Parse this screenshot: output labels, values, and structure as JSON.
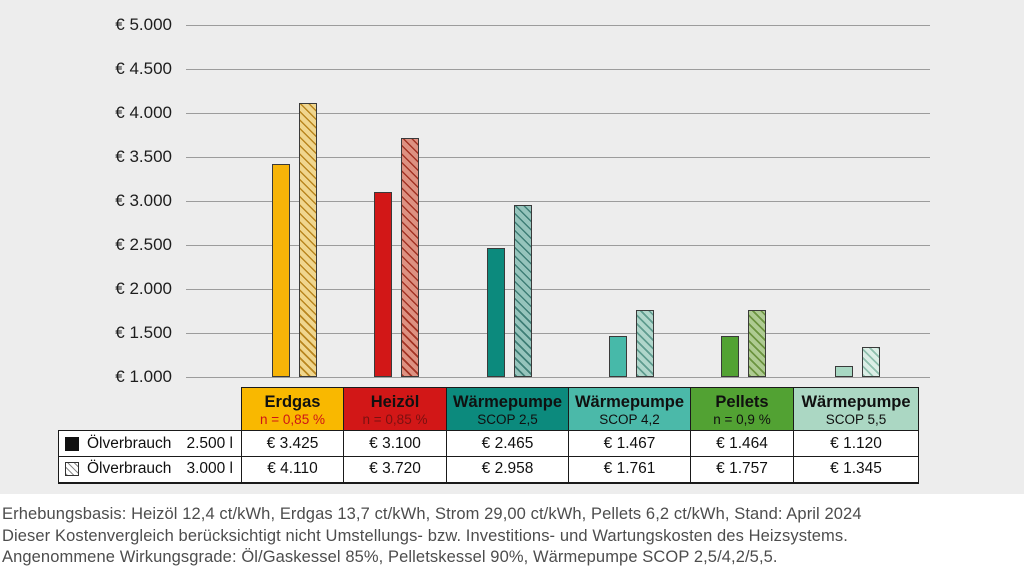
{
  "chart_data": {
    "type": "bar",
    "categories": [
      "Erdgas",
      "Heizöl",
      "Wärmepumpe SCOP 2,5",
      "Wärmepumpe SCOP 4,2",
      "Pellets",
      "Wärmepumpe SCOP 5,5"
    ],
    "series": [
      {
        "name": "Ölverbrauch 2.500 l",
        "pattern": "solid",
        "values": [
          3425,
          3100,
          2465,
          1467,
          1464,
          1120
        ]
      },
      {
        "name": "Ölverbrauch 3.000 l",
        "pattern": "hatched",
        "values": [
          4110,
          3720,
          2958,
          1761,
          1757,
          1345
        ]
      }
    ],
    "ylim": [
      1000,
      5000
    ],
    "ytick_step": 500,
    "ytick_prefix": "€ ",
    "grid": true,
    "legend_position": "table-bottom-left",
    "category_colors": [
      {
        "solid": "#f7b408",
        "hatch_base": "#f0d68e",
        "hatch_line": "#b9861f"
      },
      {
        "solid": "#d21717",
        "hatch_base": "#dd9181",
        "hatch_line": "#a33425"
      },
      {
        "solid": "#0c8a7d",
        "hatch_base": "#96c4bc",
        "hatch_line": "#3f7e76"
      },
      {
        "solid": "#47b9a9",
        "hatch_base": "#b0d6cb",
        "hatch_line": "#5f9c8f"
      },
      {
        "solid": "#52a233",
        "hatch_base": "#aecb92",
        "hatch_line": "#6c9440"
      },
      {
        "solid": "#a8d8c3",
        "hatch_base": "#dceee6",
        "hatch_line": "#8fbfad"
      }
    ]
  },
  "table": {
    "headers": [
      {
        "title": "Erdgas",
        "subtitle": "n = 0,85 %",
        "bg": "#f9b800",
        "subtitle_color": "#ce1417"
      },
      {
        "title": "Heizöl",
        "subtitle": "n = 0,85 %",
        "bg": "#d21717",
        "subtitle_color": "#7a1111"
      },
      {
        "title": "Wärmepumpe",
        "subtitle": "SCOP 2,5",
        "bg": "#0c8a7d",
        "subtitle_color": "#101010"
      },
      {
        "title": "Wärmepumpe",
        "subtitle": "SCOP 4,2",
        "bg": "#4bb9a9",
        "subtitle_color": "#101010"
      },
      {
        "title": "Pellets",
        "subtitle": "n = 0,9 %",
        "bg": "#52a233",
        "subtitle_color": "#101010"
      },
      {
        "title": "Wärmepumpe",
        "subtitle": "SCOP 5,5",
        "bg": "#abd7c3",
        "subtitle_color": "#101010"
      }
    ],
    "rows": [
      {
        "legend": {
          "swatch": "solid-black",
          "label": "Ölverbrauch",
          "amount": "2.500 l"
        },
        "values": [
          "€ 3.425",
          "€ 3.100",
          "€ 2.465",
          "€ 1.467",
          "€ 1.464",
          "€ 1.120"
        ]
      },
      {
        "legend": {
          "swatch": "hatched",
          "label": "Ölverbrauch",
          "amount": "3.000 l"
        },
        "values": [
          "€ 4.110",
          "€ 3.720",
          "€ 2.958",
          "€ 1.761",
          "€ 1.757",
          "€ 1.345"
        ]
      }
    ]
  },
  "footnotes": [
    "Erhebungsbasis: Heizöl 12,4 ct/kWh, Erdgas 13,7 ct/kWh, Strom 29,00 ct/kWh, Pellets 6,2 ct/kWh, Stand: April 2024",
    "Dieser Kostenvergleich berücksichtigt nicht Umstellungs- bzw. Investitions- und Wartungskosten des Heizsystems.",
    "Angenommene Wirkungsgrade: Öl/Gaskessel 85%, Pelletskessel 90%, Wärmepumpe SCOP 2,5/4,2/5,5."
  ],
  "colors": {
    "chart_background": "#ededed",
    "gridline": "#9c9c9c",
    "bar_border": "#3a3a3a",
    "table_border": "#1a1a1a",
    "footnote_text": "#4d4d4d"
  }
}
